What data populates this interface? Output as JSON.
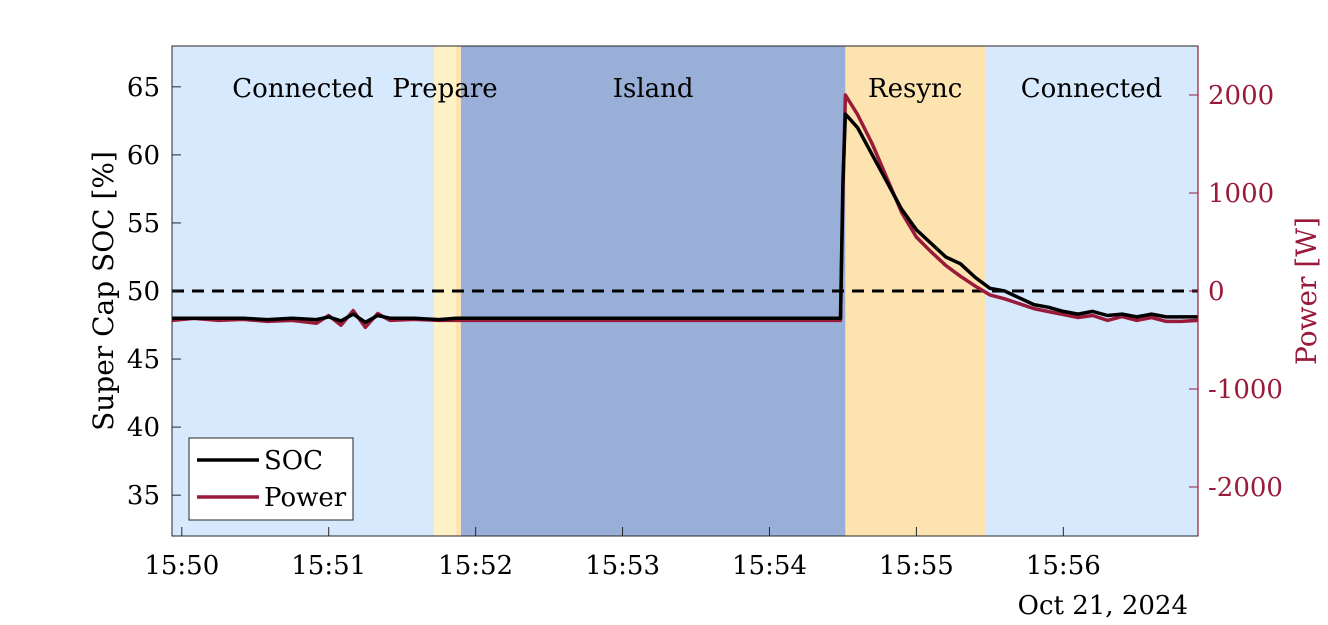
{
  "chart_data": {
    "type": "line",
    "xlim": [
      "15:49:56",
      "15:56:55"
    ],
    "x_ticks": [
      "15:50",
      "15:51",
      "15:52",
      "15:53",
      "15:54",
      "15:55",
      "15:56"
    ],
    "x_secondary_label": "Oct 21, 2024",
    "left_axis": {
      "label": "Super Cap SOC [%]",
      "ylim": [
        32,
        68
      ],
      "ticks": [
        "35",
        "40",
        "45",
        "50",
        "55",
        "60",
        "65"
      ],
      "color": "#000000"
    },
    "right_axis": {
      "label": "Power [W]",
      "ylim": [
        -2500,
        2500
      ],
      "ticks": [
        "-2000",
        "-1000",
        "0",
        "1000",
        "2000"
      ],
      "color": "#9a1a3a"
    },
    "phases": [
      {
        "label": "Connected",
        "start": "15:49:56",
        "end": "15:51:43",
        "color": "#d6e9fd"
      },
      {
        "label": "Prepare",
        "start": "15:51:43",
        "end": "15:51:52",
        "color": "#fdf1c8"
      },
      {
        "label": "",
        "start": "15:51:52",
        "end": "15:51:54",
        "color": "#fde3b0"
      },
      {
        "label": "Island",
        "start": "15:51:54",
        "end": "15:54:31",
        "color": "#99afd7"
      },
      {
        "label": "Resync",
        "start": "15:54:31",
        "end": "15:55:28",
        "color": "#fde3b0"
      },
      {
        "label": "Connected",
        "start": "15:55:28",
        "end": "15:56:55",
        "color": "#d6e9fd"
      }
    ],
    "reference_line": {
      "axis": "left",
      "value": 50,
      "style": "dashed"
    },
    "series": [
      {
        "name": "SOC",
        "axis": "left",
        "color": "#000000",
        "x": [
          "15:49:56",
          "15:50:05",
          "15:50:15",
          "15:50:25",
          "15:50:35",
          "15:50:45",
          "15:50:55",
          "15:51:00",
          "15:51:05",
          "15:51:10",
          "15:51:15",
          "15:51:20",
          "15:51:25",
          "15:51:35",
          "15:51:45",
          "15:51:52",
          "15:52:00",
          "15:53:00",
          "15:54:00",
          "15:54:29",
          "15:54:30",
          "15:54:31",
          "15:54:36",
          "15:54:42",
          "15:54:48",
          "15:54:54",
          "15:55:00",
          "15:55:06",
          "15:55:12",
          "15:55:18",
          "15:55:24",
          "15:55:30",
          "15:55:36",
          "15:55:42",
          "15:55:48",
          "15:55:54",
          "15:56:00",
          "15:56:06",
          "15:56:12",
          "15:56:18",
          "15:56:24",
          "15:56:30",
          "15:56:36",
          "15:56:42",
          "15:56:48",
          "15:56:55"
        ],
        "y": [
          48,
          48,
          48,
          48,
          47.9,
          48,
          47.9,
          48.1,
          47.8,
          48.3,
          47.7,
          48.2,
          48,
          48,
          47.9,
          48,
          48,
          48,
          48,
          48,
          58,
          63,
          62,
          60,
          58,
          56,
          54.5,
          53.5,
          52.5,
          52,
          51,
          50.2,
          50,
          49.5,
          49,
          48.8,
          48.5,
          48.3,
          48.5,
          48.2,
          48.3,
          48.1,
          48.3,
          48.1,
          48.1,
          48.1
        ]
      },
      {
        "name": "Power",
        "axis": "right",
        "color": "#9a1a3a",
        "x": [
          "15:49:56",
          "15:50:05",
          "15:50:15",
          "15:50:25",
          "15:50:35",
          "15:50:45",
          "15:50:55",
          "15:51:00",
          "15:51:05",
          "15:51:10",
          "15:51:15",
          "15:51:20",
          "15:51:25",
          "15:51:35",
          "15:51:45",
          "15:51:52",
          "15:52:00",
          "15:53:00",
          "15:54:00",
          "15:54:29",
          "15:54:30",
          "15:54:31",
          "15:54:36",
          "15:54:42",
          "15:54:48",
          "15:54:54",
          "15:55:00",
          "15:55:06",
          "15:55:12",
          "15:55:18",
          "15:55:24",
          "15:55:30",
          "15:55:36",
          "15:55:42",
          "15:55:48",
          "15:55:54",
          "15:56:00",
          "15:56:06",
          "15:56:12",
          "15:56:18",
          "15:56:24",
          "15:56:30",
          "15:56:36",
          "15:56:42",
          "15:56:48",
          "15:56:55"
        ],
        "y": [
          -300,
          -280,
          -300,
          -290,
          -310,
          -300,
          -330,
          -250,
          -350,
          -200,
          -370,
          -230,
          -300,
          -290,
          -300,
          -300,
          -300,
          -300,
          -300,
          -300,
          1000,
          2000,
          1800,
          1500,
          1150,
          800,
          550,
          400,
          260,
          150,
          50,
          -40,
          -80,
          -130,
          -180,
          -210,
          -240,
          -270,
          -250,
          -300,
          -260,
          -300,
          -270,
          -310,
          -310,
          -300
        ]
      }
    ],
    "legend": {
      "position": "bottom-left",
      "entries": [
        "SOC",
        "Power"
      ]
    }
  }
}
